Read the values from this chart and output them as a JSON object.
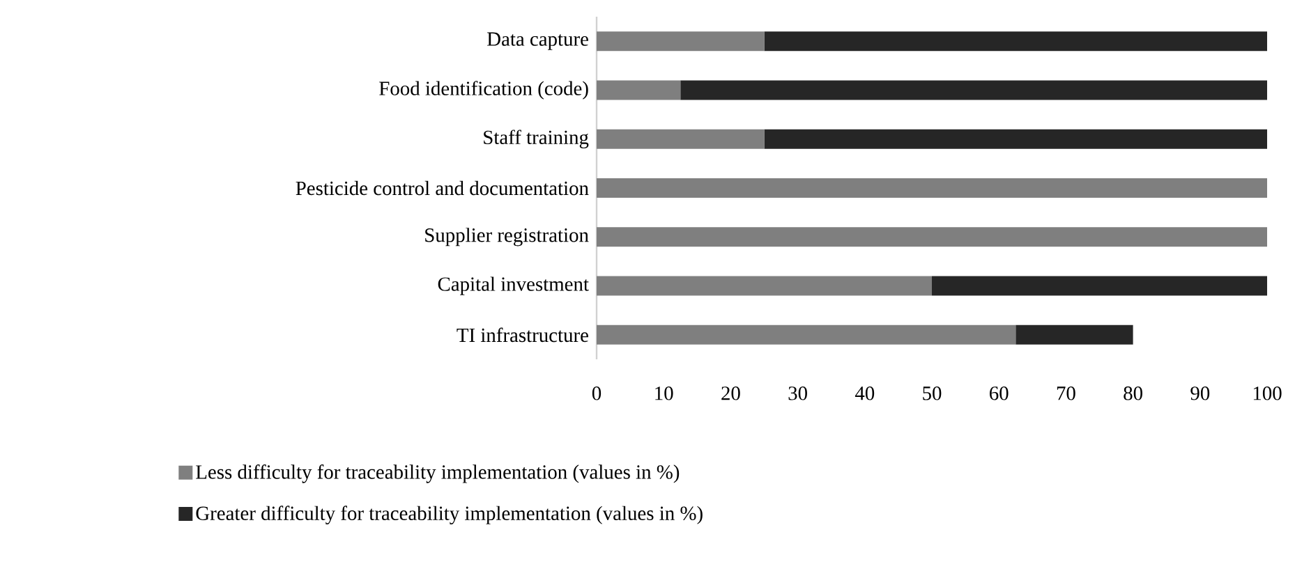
{
  "chart_data": {
    "type": "bar",
    "orientation": "horizontal",
    "stacked": true,
    "categories": [
      "Data capture",
      "Food identification (code)",
      "Staff training",
      "Pesticide control and documentation",
      "Supplier registration",
      "Capital investment",
      "TI infrastructure"
    ],
    "series": [
      {
        "name": "Less difficulty for traceability implementation (values in %)",
        "color": "#7f7f7f",
        "values": [
          25,
          12.5,
          25,
          100,
          100,
          50,
          62.5
        ]
      },
      {
        "name": "Greater difficulty for traceability implementation (values in %)",
        "color": "#262626",
        "values": [
          75,
          87.5,
          75,
          0,
          0,
          50,
          17.5
        ]
      }
    ],
    "xlim": [
      0,
      100
    ],
    "xticks": [
      0,
      10,
      20,
      30,
      40,
      50,
      60,
      70,
      80,
      90,
      100
    ],
    "legend": "bottom"
  }
}
